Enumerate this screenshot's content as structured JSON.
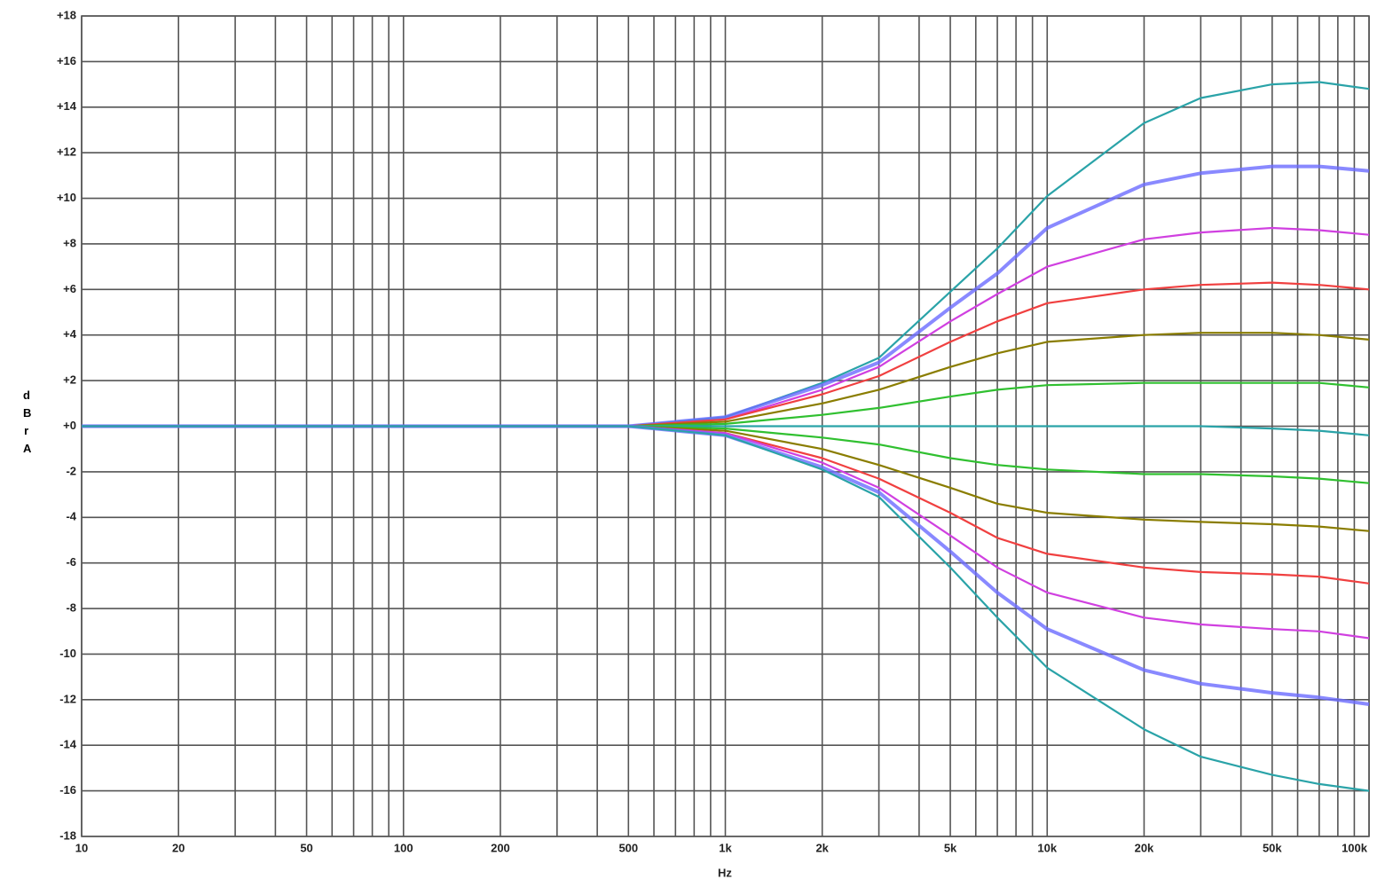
{
  "chart_data": {
    "type": "line",
    "log_x": true,
    "grid": true,
    "xlabel": "Hz",
    "ylabel": "dBr A",
    "x": [
      10,
      20,
      50,
      100,
      200,
      500,
      1000,
      2000,
      3000,
      5000,
      7000,
      10000,
      20000,
      30000,
      50000,
      70000,
      100000
    ],
    "xlim": [
      10,
      100000
    ],
    "xticks": [
      10,
      20,
      50,
      100,
      200,
      500,
      {
        "value": 1000,
        "label": "1k"
      },
      {
        "value": 2000,
        "label": "2k"
      },
      {
        "value": 5000,
        "label": "5k"
      },
      {
        "value": 10000,
        "label": "10k"
      },
      {
        "value": 20000,
        "label": "20k"
      },
      {
        "value": 50000,
        "label": "50k"
      },
      {
        "value": 100000,
        "label": "100k"
      }
    ],
    "xgrid": [
      30,
      40,
      60,
      70,
      80,
      90,
      300,
      400,
      600,
      700,
      800,
      900,
      3000,
      4000,
      6000,
      7000,
      8000,
      9000,
      30000,
      40000,
      60000,
      70000,
      80000,
      90000
    ],
    "ylim": [
      -18,
      18
    ],
    "yticks": [
      {
        "value": 18,
        "label": "+18"
      },
      {
        "value": 16,
        "label": "+16"
      },
      {
        "value": 14,
        "label": "+14"
      },
      {
        "value": 12,
        "label": "+12"
      },
      {
        "value": 10,
        "label": "+10"
      },
      {
        "value": 8,
        "label": "+8"
      },
      {
        "value": 6,
        "label": "+6"
      },
      {
        "value": 4,
        "label": "+4"
      },
      {
        "value": 2,
        "label": "+2"
      },
      {
        "value": 0,
        "label": "+0"
      },
      -2,
      -4,
      -6,
      -8,
      -10,
      -12,
      -14,
      -16,
      -18
    ],
    "series": [
      {
        "color": "#2aa3a8",
        "values": [
          0,
          0,
          0,
          0,
          0,
          0,
          0.4,
          1.9,
          3,
          5.9,
          7.8,
          10.1,
          13.3,
          14.4,
          15,
          15.1,
          14.8
        ]
      },
      {
        "color": "#6b6bff",
        "values": [
          0,
          0,
          0,
          0,
          0,
          0,
          0.4,
          1.8,
          2.8,
          5.2,
          6.7,
          8.7,
          10.6,
          11.1,
          11.4,
          11.4,
          11.2
        ]
      },
      {
        "color": "#d040e0",
        "values": [
          0,
          0,
          0,
          0,
          0,
          0,
          0.3,
          1.6,
          2.6,
          4.6,
          5.8,
          7,
          8.2,
          8.5,
          8.7,
          8.6,
          8.4
        ]
      },
      {
        "color": "#f04040",
        "values": [
          0,
          0,
          0,
          0,
          0,
          0,
          0.3,
          1.4,
          2.2,
          3.7,
          4.6,
          5.4,
          6,
          6.2,
          6.3,
          6.2,
          6
        ]
      },
      {
        "color": "#8a7d00",
        "values": [
          0,
          0,
          0,
          0,
          0,
          0,
          0.2,
          1,
          1.6,
          2.6,
          3.2,
          3.7,
          4,
          4.1,
          4.1,
          4,
          3.8
        ]
      },
      {
        "color": "#30c030",
        "values": [
          0,
          0,
          0,
          0,
          0,
          0,
          0.1,
          0.5,
          0.8,
          1.3,
          1.6,
          1.8,
          1.9,
          1.9,
          1.9,
          1.9,
          1.7
        ]
      },
      {
        "color": "#2aa3a8",
        "values": [
          0,
          0,
          0,
          0,
          0,
          0,
          0,
          0,
          0,
          0,
          0,
          0,
          0,
          0,
          -0.1,
          -0.2,
          -0.4
        ]
      },
      {
        "color": "#30c030",
        "values": [
          0,
          0,
          0,
          0,
          0,
          0,
          -0.1,
          -0.5,
          -0.8,
          -1.4,
          -1.7,
          -1.9,
          -2.1,
          -2.1,
          -2.2,
          -2.3,
          -2.5
        ]
      },
      {
        "color": "#8a7d00",
        "values": [
          0,
          0,
          0,
          0,
          0,
          0,
          -0.2,
          -1,
          -1.7,
          -2.7,
          -3.4,
          -3.8,
          -4.1,
          -4.2,
          -4.3,
          -4.4,
          -4.6
        ]
      },
      {
        "color": "#f04040",
        "values": [
          0,
          0,
          0,
          0,
          0,
          0,
          -0.3,
          -1.4,
          -2.3,
          -3.8,
          -4.9,
          -5.6,
          -6.2,
          -6.4,
          -6.5,
          -6.6,
          -6.9
        ]
      },
      {
        "color": "#d040e0",
        "values": [
          0,
          0,
          0,
          0,
          0,
          0,
          -0.3,
          -1.6,
          -2.7,
          -4.8,
          -6.2,
          -7.3,
          -8.4,
          -8.7,
          -8.9,
          -9,
          -9.3
        ]
      },
      {
        "color": "#6b6bff",
        "values": [
          0,
          0,
          0,
          0,
          0,
          0,
          -0.4,
          -1.8,
          -2.9,
          -5.5,
          -7.3,
          -8.9,
          -10.7,
          -11.3,
          -11.7,
          -11.9,
          -12.2
        ]
      },
      {
        "color": "#2aa3a8",
        "values": [
          0,
          0,
          0,
          0,
          0,
          0,
          -0.4,
          -1.9,
          -3.1,
          -6.2,
          -8.4,
          -10.6,
          -13.3,
          -14.5,
          -15.3,
          -15.7,
          -16
        ]
      }
    ]
  }
}
